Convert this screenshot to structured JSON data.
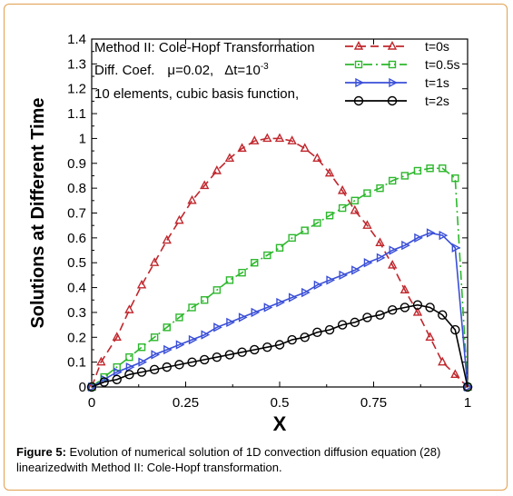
{
  "chart_data": {
    "type": "line",
    "xlabel": "X",
    "ylabel": "Solutions at Different Time",
    "xlim": [
      0,
      1
    ],
    "ylim": [
      0,
      1.4
    ],
    "xticks": [
      0,
      0.25,
      0.5,
      0.75,
      1
    ],
    "xtick_labels": [
      "0",
      "0.25",
      "0.5",
      "0.75",
      "1"
    ],
    "yticks": [
      0,
      0.1,
      0.2,
      0.3,
      0.4,
      0.5,
      0.6,
      0.7,
      0.8,
      0.9,
      1,
      1.1,
      1.2,
      1.3,
      1.4
    ],
    "ytick_labels": [
      "0",
      "0.1",
      "0.2",
      "0.3",
      "0.4",
      "0.5",
      "0.6",
      "0.7",
      "0.8",
      "0.9",
      "1",
      "1.1",
      "1.2",
      "1.3",
      "1.4"
    ],
    "legend_position": "top-right",
    "grid": false,
    "annotations": {
      "line1": "Method II: Cole-Hopf Transformation",
      "line2_prefix": "Diff. Coef.",
      "mu_symbol": "μ",
      "mu_value": "=0.02,",
      "dt_symbol": "Δt=10",
      "dt_exponent": "-3",
      "line3": "10 elements, cubic basis function,"
    },
    "series": [
      {
        "name": "t=0s",
        "color": "#c0272d",
        "line_style": "dashed",
        "marker": "triangle-up",
        "x": [
          0,
          0.025,
          0.067,
          0.1,
          0.133,
          0.167,
          0.2,
          0.233,
          0.267,
          0.3,
          0.333,
          0.367,
          0.4,
          0.433,
          0.467,
          0.5,
          0.533,
          0.567,
          0.6,
          0.633,
          0.667,
          0.7,
          0.733,
          0.767,
          0.8,
          0.833,
          0.867,
          0.9,
          0.933,
          0.967,
          1
        ],
        "y": [
          0,
          0.1,
          0.2,
          0.31,
          0.41,
          0.5,
          0.59,
          0.67,
          0.75,
          0.81,
          0.87,
          0.92,
          0.96,
          0.99,
          1.0,
          1.0,
          0.99,
          0.96,
          0.92,
          0.86,
          0.79,
          0.71,
          0.65,
          0.58,
          0.49,
          0.39,
          0.3,
          0.2,
          0.1,
          0.05,
          0
        ]
      },
      {
        "name": "t=0.5s",
        "color": "#2db82d",
        "line_style": "dash-dot",
        "marker": "square",
        "x": [
          0,
          0.033,
          0.067,
          0.1,
          0.133,
          0.167,
          0.2,
          0.233,
          0.267,
          0.3,
          0.333,
          0.367,
          0.4,
          0.433,
          0.467,
          0.5,
          0.533,
          0.567,
          0.6,
          0.633,
          0.667,
          0.7,
          0.733,
          0.767,
          0.8,
          0.833,
          0.867,
          0.9,
          0.933,
          0.967,
          1
        ],
        "y": [
          0,
          0.04,
          0.08,
          0.12,
          0.16,
          0.2,
          0.24,
          0.28,
          0.32,
          0.35,
          0.39,
          0.43,
          0.46,
          0.5,
          0.53,
          0.56,
          0.6,
          0.63,
          0.66,
          0.69,
          0.72,
          0.75,
          0.78,
          0.8,
          0.83,
          0.85,
          0.87,
          0.88,
          0.88,
          0.84,
          0
        ]
      },
      {
        "name": "t=1s",
        "color": "#3a4fd8",
        "line_style": "solid",
        "marker": "triangle-right",
        "x": [
          0,
          0.033,
          0.067,
          0.1,
          0.133,
          0.167,
          0.2,
          0.233,
          0.267,
          0.3,
          0.333,
          0.367,
          0.4,
          0.433,
          0.467,
          0.5,
          0.533,
          0.567,
          0.6,
          0.633,
          0.667,
          0.7,
          0.733,
          0.767,
          0.8,
          0.833,
          0.867,
          0.9,
          0.933,
          0.967,
          1
        ],
        "y": [
          0,
          0.03,
          0.06,
          0.08,
          0.1,
          0.13,
          0.15,
          0.17,
          0.19,
          0.21,
          0.24,
          0.26,
          0.28,
          0.3,
          0.32,
          0.34,
          0.36,
          0.38,
          0.41,
          0.43,
          0.45,
          0.47,
          0.5,
          0.52,
          0.55,
          0.57,
          0.6,
          0.62,
          0.61,
          0.56,
          0
        ]
      },
      {
        "name": "t=2s",
        "color": "#000000",
        "line_style": "solid",
        "marker": "circle",
        "x": [
          0,
          0.033,
          0.067,
          0.1,
          0.133,
          0.167,
          0.2,
          0.233,
          0.267,
          0.3,
          0.333,
          0.367,
          0.4,
          0.433,
          0.467,
          0.5,
          0.533,
          0.567,
          0.6,
          0.633,
          0.667,
          0.7,
          0.733,
          0.767,
          0.8,
          0.833,
          0.867,
          0.9,
          0.933,
          0.967,
          1
        ],
        "y": [
          0,
          0.02,
          0.03,
          0.05,
          0.06,
          0.07,
          0.08,
          0.09,
          0.1,
          0.11,
          0.12,
          0.13,
          0.14,
          0.15,
          0.16,
          0.17,
          0.19,
          0.2,
          0.22,
          0.23,
          0.25,
          0.26,
          0.28,
          0.29,
          0.31,
          0.32,
          0.33,
          0.32,
          0.29,
          0.23,
          0
        ]
      }
    ]
  },
  "caption": {
    "label": "Figure 5:",
    "text": " Evolution of numerical solution of 1D convection diffusion equation (28) linearizedwith Method II: Cole-Hopf transformation."
  }
}
